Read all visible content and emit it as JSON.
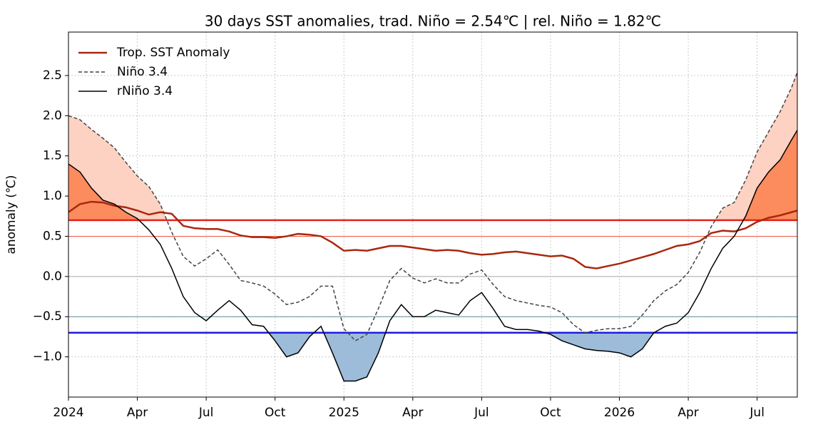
{
  "chart_data": {
    "type": "line",
    "title": "30 days SST anomalies, trad. Niño = 2.54℃ | rel. Niño = 1.82℃",
    "y_label": "anomaly (℃)",
    "x": [
      0,
      0.5,
      1,
      1.5,
      2,
      2.5,
      3,
      3.5,
      4,
      4.5,
      5,
      5.5,
      6,
      6.5,
      7,
      7.5,
      8,
      8.5,
      9,
      9.5,
      10,
      10.5,
      11,
      11.5,
      12,
      12.5,
      13,
      13.5,
      14,
      14.5,
      15,
      15.5,
      16,
      16.5,
      17,
      17.5,
      18,
      18.5,
      19,
      19.5,
      20,
      20.5,
      21,
      21.5,
      22,
      22.5,
      23,
      23.5,
      24,
      24.5,
      25,
      25.5,
      26,
      26.5,
      27,
      27.5,
      28,
      28.5,
      29,
      29.5,
      30,
      30.5,
      31,
      31.5,
      31.75
    ],
    "series": [
      {
        "name": "Trop. SST Anomaly",
        "color": "#a8280f",
        "dash": false,
        "values": [
          0.8,
          0.9,
          0.93,
          0.92,
          0.88,
          0.86,
          0.82,
          0.77,
          0.8,
          0.78,
          0.63,
          0.6,
          0.59,
          0.59,
          0.56,
          0.51,
          0.49,
          0.49,
          0.48,
          0.5,
          0.53,
          0.52,
          0.5,
          0.42,
          0.32,
          0.33,
          0.32,
          0.35,
          0.38,
          0.38,
          0.36,
          0.34,
          0.32,
          0.33,
          0.32,
          0.29,
          0.27,
          0.28,
          0.3,
          0.31,
          0.29,
          0.27,
          0.25,
          0.26,
          0.22,
          0.12,
          0.1,
          0.13,
          0.16,
          0.2,
          0.24,
          0.28,
          0.33,
          0.38,
          0.4,
          0.44,
          0.54,
          0.57,
          0.56,
          0.6,
          0.68,
          0.73,
          0.76,
          0.8,
          0.82
        ]
      },
      {
        "name": "Niño 3.4",
        "color": "#444444",
        "dash": true,
        "values": [
          2.0,
          1.95,
          1.83,
          1.72,
          1.6,
          1.42,
          1.25,
          1.12,
          0.9,
          0.55,
          0.25,
          0.13,
          0.22,
          0.33,
          0.15,
          -0.05,
          -0.08,
          -0.12,
          -0.22,
          -0.35,
          -0.32,
          -0.25,
          -0.12,
          -0.12,
          -0.65,
          -0.8,
          -0.72,
          -0.4,
          -0.05,
          0.1,
          -0.02,
          -0.08,
          -0.03,
          -0.08,
          -0.08,
          0.03,
          0.08,
          -0.1,
          -0.25,
          -0.3,
          -0.33,
          -0.36,
          -0.38,
          -0.45,
          -0.6,
          -0.7,
          -0.67,
          -0.65,
          -0.65,
          -0.62,
          -0.48,
          -0.3,
          -0.18,
          -0.1,
          0.05,
          0.3,
          0.62,
          0.85,
          0.92,
          1.2,
          1.55,
          1.8,
          2.05,
          2.35,
          2.54
        ]
      },
      {
        "name": "rNiño 3.4",
        "color": "#000000",
        "dash": false,
        "values": [
          1.4,
          1.3,
          1.1,
          0.95,
          0.9,
          0.8,
          0.72,
          0.58,
          0.4,
          0.1,
          -0.25,
          -0.45,
          -0.55,
          -0.42,
          -0.3,
          -0.42,
          -0.6,
          -0.62,
          -0.8,
          -1.0,
          -0.95,
          -0.75,
          -0.62,
          -0.95,
          -1.3,
          -1.3,
          -1.25,
          -0.95,
          -0.55,
          -0.35,
          -0.5,
          -0.5,
          -0.42,
          -0.45,
          -0.48,
          -0.3,
          -0.2,
          -0.4,
          -0.62,
          -0.66,
          -0.66,
          -0.68,
          -0.72,
          -0.8,
          -0.85,
          -0.9,
          -0.92,
          -0.93,
          -0.95,
          -1.0,
          -0.9,
          -0.7,
          -0.62,
          -0.58,
          -0.45,
          -0.2,
          0.1,
          0.35,
          0.5,
          0.75,
          1.1,
          1.3,
          1.45,
          1.7,
          1.82
        ]
      }
    ],
    "reference_lines": [
      {
        "value": 0.7,
        "color": "#e3241c",
        "style": "thick"
      },
      {
        "value": 0.5,
        "color": "#e8553f",
        "style": "thin"
      },
      {
        "value": 0,
        "color": "#aaaaaa",
        "style": "thin"
      },
      {
        "value": -0.5,
        "color": "#5f8c98",
        "style": "thin"
      },
      {
        "value": -0.7,
        "color": "#1c1cdc",
        "style": "thick"
      }
    ],
    "fills": [
      {
        "series": 1,
        "ref": 0,
        "side": "above",
        "color": "#fdd2c2"
      },
      {
        "series": 2,
        "ref": 0,
        "side": "above",
        "color": "#fc8b5e"
      },
      {
        "series": 2,
        "ref": 4,
        "side": "below",
        "color": "#9dbcda"
      }
    ],
    "xlim": [
      0,
      31.75
    ],
    "xticks": [
      {
        "value": 0,
        "label": "2024"
      },
      {
        "value": 3,
        "label": "Apr"
      },
      {
        "value": 6,
        "label": "Jul"
      },
      {
        "value": 9,
        "label": "Oct"
      },
      {
        "value": 12,
        "label": "2025"
      },
      {
        "value": 15,
        "label": "Apr"
      },
      {
        "value": 18,
        "label": "Jul"
      },
      {
        "value": 21,
        "label": "Oct"
      },
      {
        "value": 24,
        "label": "2026"
      },
      {
        "value": 27,
        "label": "Apr"
      },
      {
        "value": 30,
        "label": "Jul"
      }
    ],
    "ylim": [
      -1.5,
      3.04
    ],
    "yticks": [
      {
        "value": -1,
        "label": "−1.0"
      },
      {
        "value": -0.5,
        "label": "−0.5"
      },
      {
        "value": 0,
        "label": "0.0"
      },
      0.5,
      {
        "value": 1,
        "label": "1.0"
      },
      1.5,
      {
        "value": 2,
        "label": "2.0"
      },
      2.5
    ],
    "grid": true,
    "legend": "upper left"
  }
}
